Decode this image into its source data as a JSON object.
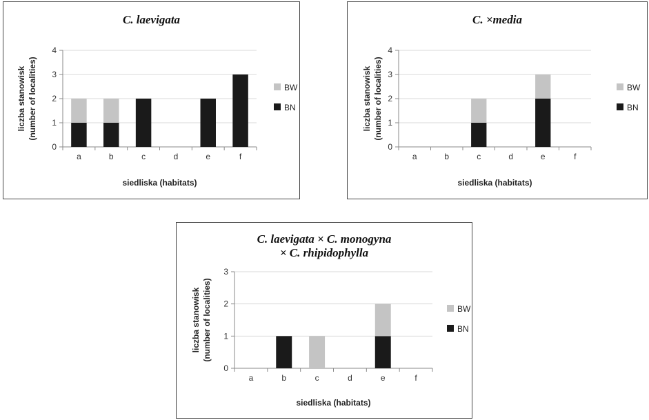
{
  "colors": {
    "BW": "#c4c4c4",
    "BN": "#1a1a1a",
    "grid": "#d9d9d9",
    "axis": "#8a8a8a"
  },
  "chart_data": [
    {
      "type": "bar",
      "stacked": true,
      "title_lines": [
        "C. laevigata"
      ],
      "categories": [
        "a",
        "b",
        "c",
        "d",
        "e",
        "f"
      ],
      "series": [
        {
          "name": "BN",
          "values": [
            1,
            1,
            2,
            0,
            2,
            3
          ]
        },
        {
          "name": "BW",
          "values": [
            1,
            1,
            0,
            0,
            0,
            0
          ]
        }
      ],
      "xlabel": "siedliska (habitats)",
      "ylabel_lines": [
        "liczba stanowisk",
        "(number of localities)"
      ],
      "ylim": [
        0,
        4
      ],
      "yticks": [
        0,
        1,
        2,
        3,
        4
      ],
      "grid": true,
      "legend": "right",
      "legend_order": [
        "BW",
        "BN"
      ]
    },
    {
      "type": "bar",
      "stacked": true,
      "title_lines": [
        "C. ×media"
      ],
      "categories": [
        "a",
        "b",
        "c",
        "d",
        "e",
        "f"
      ],
      "series": [
        {
          "name": "BN",
          "values": [
            0,
            0,
            1,
            0,
            2,
            0
          ]
        },
        {
          "name": "BW",
          "values": [
            0,
            0,
            1,
            0,
            1,
            0
          ]
        }
      ],
      "xlabel": "siedliska (habitats)",
      "ylabel_lines": [
        "liczba stanowisk",
        "(number of localities)"
      ],
      "ylim": [
        0,
        4
      ],
      "yticks": [
        0,
        1,
        2,
        3,
        4
      ],
      "grid": true,
      "legend": "right",
      "legend_order": [
        "BW",
        "BN"
      ]
    },
    {
      "type": "bar",
      "stacked": true,
      "title_lines": [
        "C. laevigata × C. monogyna",
        "× C. rhipidophylla"
      ],
      "categories": [
        "a",
        "b",
        "c",
        "d",
        "e",
        "f"
      ],
      "series": [
        {
          "name": "BN",
          "values": [
            0,
            1,
            0,
            0,
            1,
            0
          ]
        },
        {
          "name": "BW",
          "values": [
            0,
            0,
            1,
            0,
            1,
            0
          ]
        }
      ],
      "xlabel": "siedliska (habitats)",
      "ylabel_lines": [
        "liczba stanowisk",
        "(number of localities)"
      ],
      "ylim": [
        0,
        3
      ],
      "yticks": [
        0,
        1,
        2,
        3
      ],
      "grid": true,
      "legend": "right",
      "legend_order": [
        "BW",
        "BN"
      ]
    }
  ]
}
